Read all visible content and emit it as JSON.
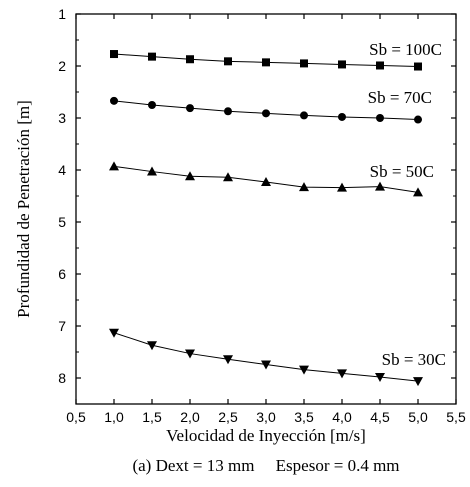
{
  "chart_data": {
    "type": "line",
    "xlabel": "Velocidad de Inyección [m/s]",
    "ylabel": "Profundidad de Penetración [m]",
    "caption": "(a) Dext = 13 mm     Espesor = 0.4 mm",
    "xlim": [
      0.5,
      5.5
    ],
    "ylim": [
      1,
      8.5
    ],
    "y_inverted": true,
    "grid": false,
    "x_ticks": [
      0.5,
      1.0,
      1.5,
      2.0,
      2.5,
      3.0,
      3.5,
      4.0,
      4.5,
      5.0,
      5.5
    ],
    "x_tick_labels": [
      "0,5",
      "1,0",
      "1,5",
      "2,0",
      "2,5",
      "3,0",
      "3,5",
      "4,0",
      "4,5",
      "5,0",
      "5,5"
    ],
    "y_ticks": [
      1,
      2,
      3,
      4,
      5,
      6,
      7,
      8
    ],
    "y_tick_labels": [
      "1",
      "2",
      "3",
      "4",
      "5",
      "6",
      "7",
      "8"
    ],
    "x": [
      1.0,
      1.5,
      2.0,
      2.5,
      3.0,
      3.5,
      4.0,
      4.5,
      5.0
    ],
    "series": [
      {
        "name": "Sb = 100C",
        "marker": "square",
        "values": [
          1.77,
          1.82,
          1.87,
          1.91,
          1.93,
          1.95,
          1.97,
          1.99,
          2.01
        ]
      },
      {
        "name": "Sb = 70C",
        "marker": "circle",
        "values": [
          2.67,
          2.75,
          2.81,
          2.87,
          2.91,
          2.95,
          2.98,
          3.0,
          3.03
        ]
      },
      {
        "name": "Sb = 50C",
        "marker": "triangle-up",
        "values": [
          3.93,
          4.03,
          4.12,
          4.14,
          4.23,
          4.33,
          4.34,
          4.32,
          4.43
        ]
      },
      {
        "name": "Sb = 30C",
        "marker": "triangle-down",
        "values": [
          7.13,
          7.37,
          7.53,
          7.64,
          7.74,
          7.84,
          7.91,
          7.98,
          8.06
        ]
      }
    ]
  }
}
